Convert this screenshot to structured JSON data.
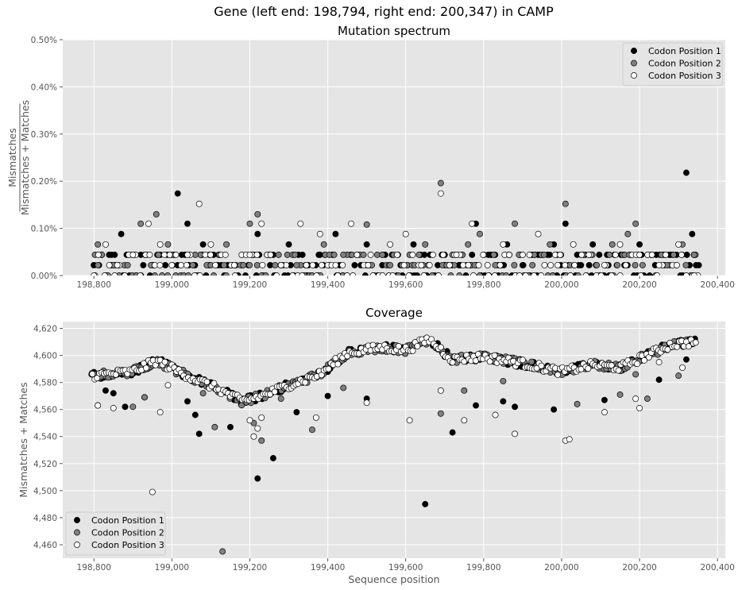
{
  "figure": {
    "title": "Gene (left end: 198,794, right end: 200,347) in CAMP"
  },
  "chart_data": [
    {
      "type": "scatter",
      "title": "Mutation spectrum",
      "xlabel": "",
      "ylabel_numerator": "Mismatches",
      "ylabel_denominator": "Mismatches + Matches",
      "xlim": [
        198720,
        200420
      ],
      "ylim": [
        0,
        0.5
      ],
      "x_ticks": [
        198800,
        199000,
        199200,
        199400,
        199600,
        199800,
        200000,
        200200,
        200400
      ],
      "x_tick_labels": [
        "198,800",
        "199,000",
        "199,200",
        "199,400",
        "199,600",
        "199,800",
        "200,000",
        "200,200",
        "200,400"
      ],
      "y_ticks": [
        0,
        0.1,
        0.2,
        0.3,
        0.4,
        0.5
      ],
      "y_tick_labels": [
        "0.00%",
        "0.10%",
        "0.20%",
        "0.30%",
        "0.40%",
        "0.50%"
      ],
      "grid": true,
      "legend_position": "top-right",
      "series": [
        {
          "name": "Codon Position 1",
          "color": "#000000",
          "points": [
            [
              198800,
              0.022
            ],
            [
              198820,
              0.044
            ],
            [
              198845,
              0.022
            ],
            [
              198870,
              0.088
            ],
            [
              198900,
              0.044
            ],
            [
              198950,
              0.022
            ],
            [
              199000,
              0.044
            ],
            [
              199015,
              0.174
            ],
            [
              199040,
              0.11
            ],
            [
              199080,
              0.066
            ],
            [
              199120,
              0.044
            ],
            [
              199180,
              0.022
            ],
            [
              199220,
              0.088
            ],
            [
              199260,
              0.044
            ],
            [
              199300,
              0.066
            ],
            [
              199350,
              0.022
            ],
            [
              199380,
              0.044
            ],
            [
              199420,
              0.088
            ],
            [
              199460,
              0.044
            ],
            [
              199500,
              0.066
            ],
            [
              199540,
              0.022
            ],
            [
              199580,
              0.044
            ],
            [
              199620,
              0.066
            ],
            [
              199660,
              0.022
            ],
            [
              199700,
              0.044
            ],
            [
              199740,
              0.022
            ],
            [
              199780,
              0.11
            ],
            [
              199820,
              0.044
            ],
            [
              199860,
              0.066
            ],
            [
              199900,
              0.022
            ],
            [
              199940,
              0.044
            ],
            [
              199980,
              0.066
            ],
            [
              200010,
              0.11
            ],
            [
              200040,
              0.044
            ],
            [
              200080,
              0.066
            ],
            [
              200120,
              0.022
            ],
            [
              200160,
              0.044
            ],
            [
              200200,
              0.066
            ],
            [
              200240,
              0.022
            ],
            [
              200280,
              0.044
            ],
            [
              200320,
              0.218
            ],
            [
              200335,
              0.088
            ],
            [
              200345,
              0.022
            ]
          ]
        },
        {
          "name": "Codon Position 2",
          "color": "#808080",
          "points": [
            [
              198810,
              0.066
            ],
            [
              198850,
              0.022
            ],
            [
              198890,
              0.044
            ],
            [
              198920,
              0.11
            ],
            [
              198960,
              0.13
            ],
            [
              198990,
              0.066
            ],
            [
              199060,
              0.044
            ],
            [
              199100,
              0.022
            ],
            [
              199140,
              0.066
            ],
            [
              199200,
              0.11
            ],
            [
              199220,
              0.13
            ],
            [
              199250,
              0.044
            ],
            [
              199320,
              0.022
            ],
            [
              199390,
              0.066
            ],
            [
              199440,
              0.044
            ],
            [
              199500,
              0.108
            ],
            [
              199560,
              0.022
            ],
            [
              199610,
              0.044
            ],
            [
              199650,
              0.066
            ],
            [
              199690,
              0.196
            ],
            [
              199720,
              0.044
            ],
            [
              199760,
              0.066
            ],
            [
              199790,
              0.088
            ],
            [
              199830,
              0.022
            ],
            [
              199880,
              0.11
            ],
            [
              199930,
              0.044
            ],
            [
              199970,
              0.066
            ],
            [
              200010,
              0.152
            ],
            [
              200050,
              0.044
            ],
            [
              200090,
              0.022
            ],
            [
              200130,
              0.066
            ],
            [
              200170,
              0.088
            ],
            [
              200190,
              0.11
            ],
            [
              200230,
              0.044
            ],
            [
              200270,
              0.022
            ],
            [
              200310,
              0.066
            ],
            [
              200340,
              0.044
            ]
          ]
        },
        {
          "name": "Codon Position 3",
          "color": "#ffffff",
          "points": [
            [
              198800,
              0.0
            ],
            [
              198830,
              0.066
            ],
            [
              198860,
              0.022
            ],
            [
              198900,
              0.044
            ],
            [
              198940,
              0.11
            ],
            [
              198970,
              0.066
            ],
            [
              199000,
              0.022
            ],
            [
              199040,
              0.044
            ],
            [
              199070,
              0.152
            ],
            [
              199100,
              0.066
            ],
            [
              199160,
              0.022
            ],
            [
              199200,
              0.044
            ],
            [
              199230,
              0.11
            ],
            [
              199280,
              0.022
            ],
            [
              199330,
              0.11
            ],
            [
              199380,
              0.088
            ],
            [
              199420,
              0.022
            ],
            [
              199460,
              0.11
            ],
            [
              199510,
              0.044
            ],
            [
              199560,
              0.066
            ],
            [
              199600,
              0.088
            ],
            [
              199640,
              0.022
            ],
            [
              199690,
              0.174
            ],
            [
              199730,
              0.044
            ],
            [
              199770,
              0.11
            ],
            [
              199810,
              0.022
            ],
            [
              199850,
              0.066
            ],
            [
              199900,
              0.044
            ],
            [
              199940,
              0.088
            ],
            [
              199990,
              0.022
            ],
            [
              200030,
              0.066
            ],
            [
              200070,
              0.044
            ],
            [
              200110,
              0.022
            ],
            [
              200150,
              0.066
            ],
            [
              200200,
              0.044
            ],
            [
              200250,
              0.022
            ],
            [
              200300,
              0.066
            ],
            [
              200340,
              0.0
            ]
          ]
        }
      ]
    },
    {
      "type": "scatter",
      "title": "Coverage",
      "xlabel": "Sequence position",
      "ylabel": "Mismatches + Matches",
      "xlim": [
        198720,
        200420
      ],
      "ylim": [
        4450,
        4625
      ],
      "x_ticks": [
        198800,
        199000,
        199200,
        199400,
        199600,
        199800,
        200000,
        200200,
        200400
      ],
      "x_tick_labels": [
        "198,800",
        "199,000",
        "199,200",
        "199,400",
        "199,600",
        "199,800",
        "200,000",
        "200,200",
        "200,400"
      ],
      "y_ticks": [
        4460,
        4480,
        4500,
        4520,
        4540,
        4560,
        4580,
        4600,
        4620
      ],
      "y_tick_labels": [
        "4,460",
        "4,480",
        "4,500",
        "4,520",
        "4,540",
        "4,560",
        "4,580",
        "4,600",
        "4,620"
      ],
      "grid": true,
      "legend_position": "bottom-left",
      "trend_knots": [
        [
          198794,
          4585
        ],
        [
          198900,
          4588
        ],
        [
          198960,
          4596
        ],
        [
          199040,
          4585
        ],
        [
          199120,
          4575
        ],
        [
          199180,
          4566
        ],
        [
          199230,
          4570
        ],
        [
          199300,
          4578
        ],
        [
          199380,
          4586
        ],
        [
          199450,
          4602
        ],
        [
          199540,
          4606
        ],
        [
          199600,
          4604
        ],
        [
          199660,
          4612
        ],
        [
          199720,
          4597
        ],
        [
          199800,
          4599
        ],
        [
          199900,
          4594
        ],
        [
          200000,
          4588
        ],
        [
          200080,
          4593
        ],
        [
          200150,
          4591
        ],
        [
          200220,
          4600
        ],
        [
          200280,
          4608
        ],
        [
          200347,
          4610
        ]
      ],
      "series": [
        {
          "name": "Codon Position 1",
          "color": "#000000",
          "outliers": [
            [
              198810,
              4563
            ],
            [
              198830,
              4574
            ],
            [
              198850,
              4572
            ],
            [
              198880,
              4562
            ],
            [
              198930,
              4569
            ],
            [
              199040,
              4566
            ],
            [
              199060,
              4556
            ],
            [
              199070,
              4542
            ],
            [
              199150,
              4547
            ],
            [
              199220,
              4509
            ],
            [
              199260,
              4524
            ],
            [
              199320,
              4558
            ],
            [
              199400,
              4570
            ],
            [
              199500,
              4568
            ],
            [
              199650,
              4490
            ],
            [
              199720,
              4543
            ],
            [
              199780,
              4563
            ],
            [
              199850,
              4566
            ],
            [
              199880,
              4562
            ],
            [
              199980,
              4560
            ],
            [
              200110,
              4567
            ],
            [
              200250,
              4582
            ],
            [
              200320,
              4597
            ]
          ]
        },
        {
          "name": "Codon Position 2",
          "color": "#808080",
          "outliers": [
            [
              198900,
              4562
            ],
            [
              198930,
              4569
            ],
            [
              199080,
              4572
            ],
            [
              199110,
              4547
            ],
            [
              199130,
              4455
            ],
            [
              199210,
              4550
            ],
            [
              199230,
              4537
            ],
            [
              199280,
              4568
            ],
            [
              199360,
              4545
            ],
            [
              199440,
              4576
            ],
            [
              199690,
              4557
            ],
            [
              199750,
              4574
            ],
            [
              199850,
              4581
            ],
            [
              200040,
              4564
            ],
            [
              200150,
              4571
            ],
            [
              200190,
              4586
            ],
            [
              200220,
              4568
            ],
            [
              200300,
              4585
            ]
          ]
        },
        {
          "name": "Codon Position 3",
          "color": "#ffffff",
          "outliers": [
            [
              198810,
              4563
            ],
            [
              198850,
              4561
            ],
            [
              198950,
              4499
            ],
            [
              198970,
              4558
            ],
            [
              198990,
              4578
            ],
            [
              199200,
              4552
            ],
            [
              199210,
              4540
            ],
            [
              199220,
              4546
            ],
            [
              199230,
              4554
            ],
            [
              199370,
              4554
            ],
            [
              199500,
              4565
            ],
            [
              199610,
              4552
            ],
            [
              199690,
              4574
            ],
            [
              199750,
              4552
            ],
            [
              199830,
              4556
            ],
            [
              199880,
              4542
            ],
            [
              200010,
              4537
            ],
            [
              200020,
              4538
            ],
            [
              200110,
              4558
            ],
            [
              200190,
              4568
            ],
            [
              200200,
              4561
            ],
            [
              200250,
              4595
            ],
            [
              200310,
              4591
            ]
          ]
        }
      ]
    }
  ]
}
